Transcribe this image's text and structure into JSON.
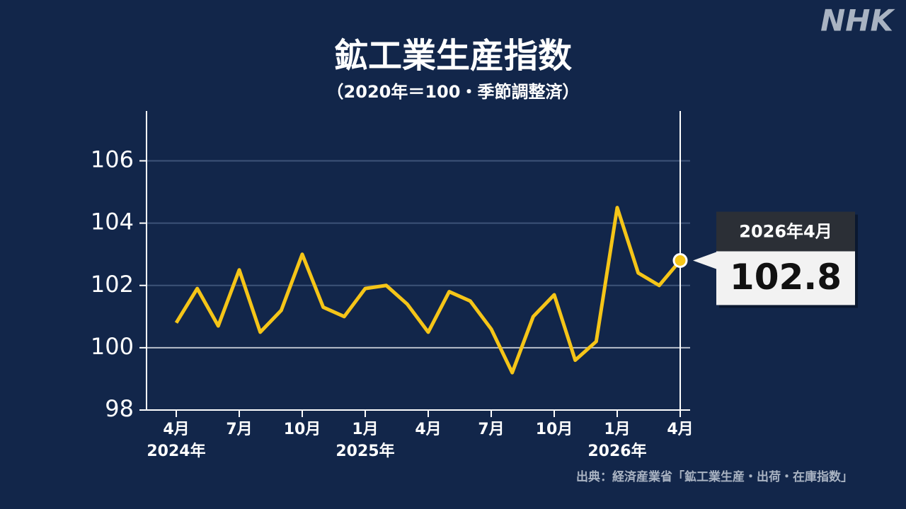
{
  "chart_data": {
    "type": "line",
    "title": "鉱工業生産指数",
    "subtitle": "（2020年＝100・季節調整済）",
    "logo": "NHK",
    "source": "出典：経済産業省「鉱工業生産・出荷・在庫指数」",
    "categories": [
      "4月",
      null,
      null,
      "7月",
      null,
      null,
      "10月",
      null,
      null,
      "1月",
      null,
      null,
      "4月",
      null,
      null,
      "7月",
      null,
      null,
      "10月",
      null,
      null,
      "1月",
      null,
      null,
      "4月"
    ],
    "category_years": [
      "2024年",
      null,
      null,
      null,
      null,
      null,
      null,
      null,
      null,
      "2025年",
      null,
      null,
      null,
      null,
      null,
      null,
      null,
      null,
      null,
      null,
      null,
      "2026年",
      null,
      null,
      null
    ],
    "series": [
      {
        "name": "鉱工業生産指数",
        "color": "#f5c518",
        "values": [
          100.8,
          101.9,
          100.7,
          102.5,
          100.5,
          101.2,
          103.0,
          101.3,
          101.0,
          101.9,
          102.0,
          101.4,
          100.5,
          101.8,
          101.5,
          100.6,
          99.2,
          101.0,
          101.7,
          99.6,
          100.2,
          104.5,
          102.4,
          102.0,
          102.8
        ]
      }
    ],
    "callout": {
      "label": "2026年4月"
    },
    "ylim": [
      98,
      107.6
    ],
    "yticks": [
      98,
      100,
      102,
      104,
      106
    ],
    "grid": true,
    "reference_line": 100
  }
}
